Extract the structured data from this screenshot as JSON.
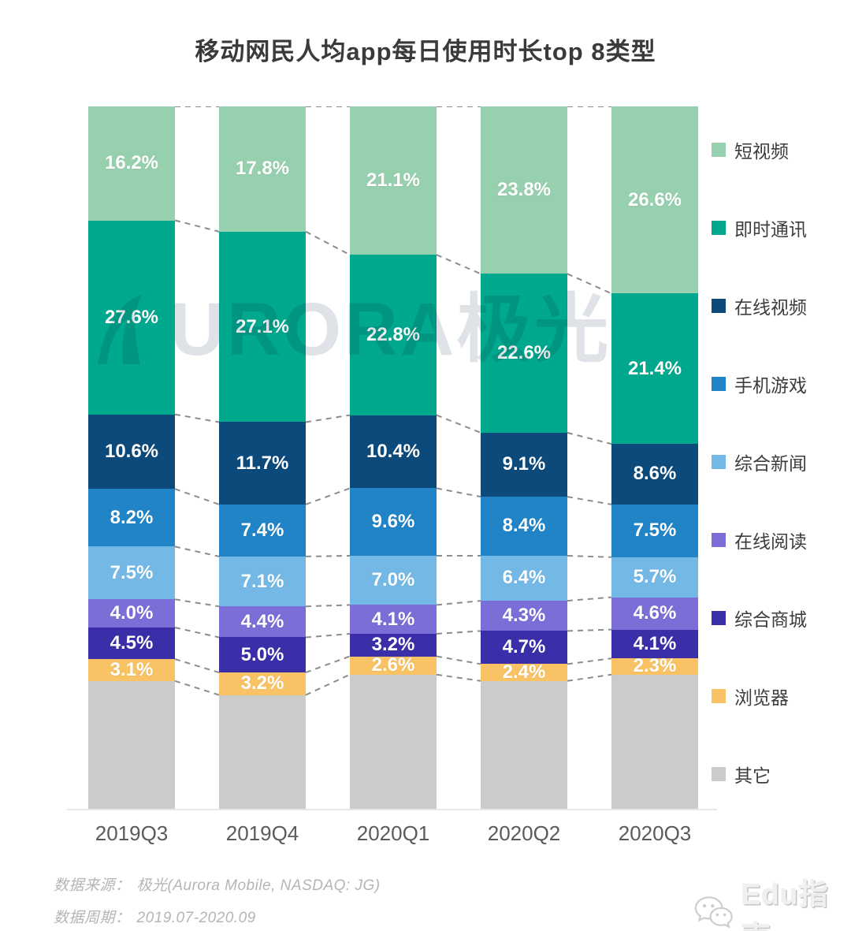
{
  "title": "移动网民人均app每日使用时长top 8类型",
  "chart_data": {
    "type": "bar",
    "stacked": true,
    "percent_total": 100,
    "value_suffix": "%",
    "legend_position": "right",
    "grid": false,
    "categories": [
      "2019Q3",
      "2019Q4",
      "2020Q1",
      "2020Q2",
      "2020Q3"
    ],
    "series": [
      {
        "name": "短视频",
        "color": "#97d0ae",
        "labeled": true,
        "values": [
          16.2,
          17.8,
          21.1,
          23.8,
          26.6
        ]
      },
      {
        "name": "即时通讯",
        "color": "#00a88e",
        "labeled": true,
        "values": [
          27.6,
          27.1,
          22.8,
          22.6,
          21.4
        ]
      },
      {
        "name": "在线视频",
        "color": "#0c4a7c",
        "labeled": true,
        "values": [
          10.6,
          11.7,
          10.4,
          9.1,
          8.6
        ]
      },
      {
        "name": "手机游戏",
        "color": "#2184c6",
        "labeled": true,
        "values": [
          8.2,
          7.4,
          9.6,
          8.4,
          7.5
        ]
      },
      {
        "name": "综合新闻",
        "color": "#74b9e6",
        "labeled": true,
        "values": [
          7.5,
          7.1,
          7.0,
          6.4,
          5.7
        ]
      },
      {
        "name": "在线阅读",
        "color": "#7b6ed6",
        "labeled": true,
        "values": [
          4.0,
          4.4,
          4.1,
          4.3,
          4.6
        ]
      },
      {
        "name": "综合商城",
        "color": "#3a2fa8",
        "labeled": true,
        "values": [
          4.5,
          5.0,
          3.2,
          4.7,
          4.1
        ]
      },
      {
        "name": "浏览器",
        "color": "#f9c365",
        "labeled": true,
        "values": [
          3.1,
          3.2,
          2.6,
          2.4,
          2.3
        ]
      },
      {
        "name": "其它",
        "color": "#cbcbcb",
        "labeled": false,
        "values": [
          18.3,
          16.3,
          19.2,
          18.3,
          19.2
        ]
      }
    ]
  },
  "watermark_text": "URORA极光",
  "footer": {
    "source_label": "数据来源：",
    "source_value": "极光(Aurora Mobile, NASDAQ: JG)",
    "period_label": "数据周期：",
    "period_value": "2019.07-2020.09"
  },
  "branding": {
    "name": "Edu指南",
    "icon": "wechat-icon"
  }
}
